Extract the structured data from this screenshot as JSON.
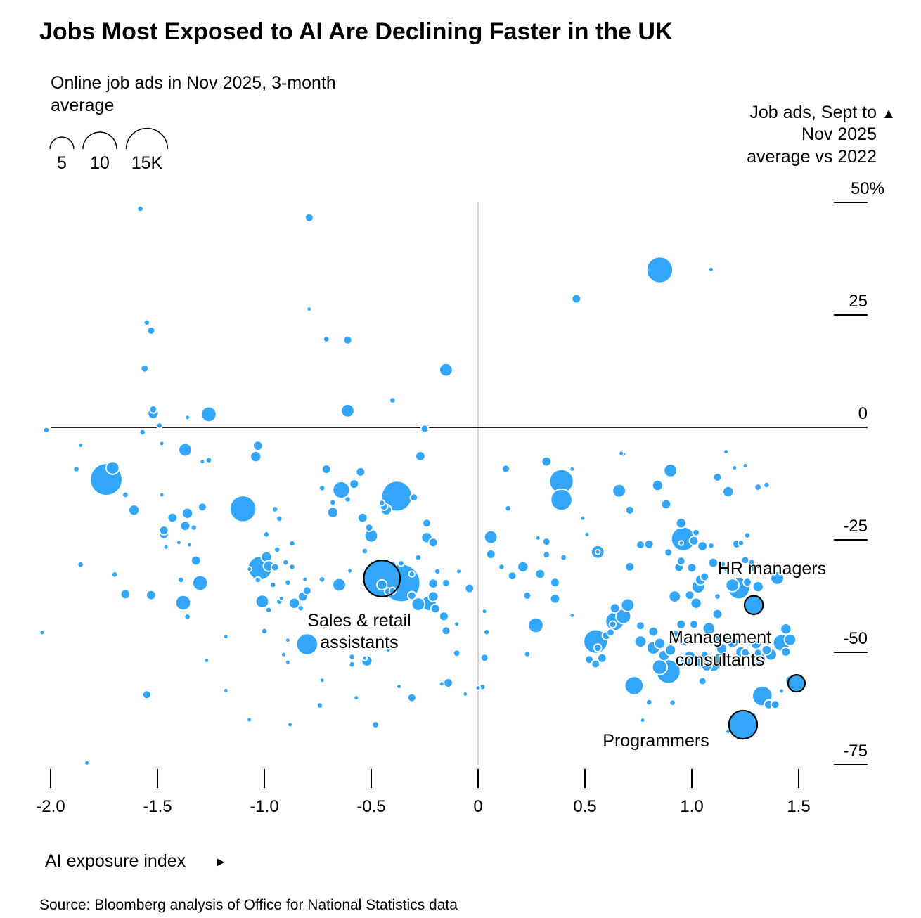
{
  "chart_data": {
    "type": "scatter",
    "title": "Jobs Most Exposed to AI Are Declining Faster in the UK",
    "size_legend": {
      "title": "Online job ads in Nov 2025, 3-month average",
      "entries": [
        {
          "label": "5",
          "value_k": 5
        },
        {
          "label": "10",
          "value_k": 10
        },
        {
          "label": "15K",
          "value_k": 15
        }
      ]
    },
    "ylabel": "Job ads, Sept to Nov 2025 average vs 2022",
    "ylabel_lines": [
      "Job ads, Sept to",
      "Nov 2025",
      "average vs 2022"
    ],
    "ylabel_arrow": "▲",
    "xlabel": "AI exposure index",
    "xlabel_arrow": "►",
    "xlim": [
      -2.0,
      1.5
    ],
    "ylim": [
      -75,
      50
    ],
    "xticks": [
      {
        "value": -2.0,
        "label": "-2.0"
      },
      {
        "value": -1.5,
        "label": "-1.5"
      },
      {
        "value": -1.0,
        "label": "-1.0"
      },
      {
        "value": -0.5,
        "label": "-0.5"
      },
      {
        "value": 0,
        "label": "0"
      },
      {
        "value": 0.5,
        "label": "0.5"
      },
      {
        "value": 1.0,
        "label": "1.0"
      },
      {
        "value": 1.5,
        "label": "1.5"
      }
    ],
    "yticks": [
      {
        "value": 50,
        "label": "50%"
      },
      {
        "value": 25,
        "label": "25"
      },
      {
        "value": 0,
        "label": "0"
      },
      {
        "value": -25,
        "label": "-25"
      },
      {
        "value": -50,
        "label": "-50"
      },
      {
        "value": -75,
        "label": "-75"
      }
    ],
    "bubble_color": "#33a6f9",
    "highlighted": [
      {
        "name": "Sales & retail assistants",
        "label_lines": [
          "Sales & retail",
          "assistants"
        ],
        "x": -0.45,
        "y": -33.6,
        "size_k": 11.5
      },
      {
        "name": "HR managers",
        "label_lines": [
          "HR managers"
        ],
        "x": 1.29,
        "y": -39.5,
        "size_k": 3.0
      },
      {
        "name": "Management consultants",
        "label_lines": [
          "Management",
          "consultants"
        ],
        "x": 1.49,
        "y": -56.9,
        "size_k": 2.5
      },
      {
        "name": "Programmers",
        "label_lines": [
          "Programmers"
        ],
        "x": 1.24,
        "y": -66.1,
        "size_k": 7.0
      }
    ],
    "points": [
      [
        -1.58,
        48.6,
        0.3
      ],
      [
        -1.55,
        23.3,
        0.3
      ],
      [
        -1.57,
        -1.1,
        0.3
      ],
      [
        -2.04,
        -45.6,
        0.2
      ],
      [
        -0.79,
        46.6,
        0.6
      ],
      [
        -0.79,
        26.3,
        0.2
      ],
      [
        -0.71,
        19.6,
        0.3
      ],
      [
        -0.61,
        19.4,
        0.6
      ],
      [
        0.46,
        28.6,
        0.7
      ],
      [
        0.85,
        35.0,
        6.0
      ],
      [
        1.09,
        35.1,
        0.2
      ],
      [
        -0.15,
        12.8,
        1.5
      ],
      [
        -1.53,
        21.5,
        0.5
      ],
      [
        -1.56,
        13.1,
        0.5
      ],
      [
        -1.52,
        4.0,
        0.5
      ],
      [
        -1.52,
        3.1,
        1.0
      ],
      [
        -1.49,
        0.4,
        0.3
      ],
      [
        -1.36,
        2.2,
        0.2
      ],
      [
        -1.26,
        2.9,
        2.0
      ],
      [
        -0.61,
        3.7,
        1.5
      ],
      [
        -0.4,
        6.0,
        0.3
      ],
      [
        -0.25,
        -0.3,
        0.5
      ],
      [
        -2.02,
        -0.6,
        0.3
      ],
      [
        -1.86,
        -4.0,
        0.2
      ],
      [
        -1.88,
        -9.3,
        0.3
      ],
      [
        -1.74,
        -11.6,
        9.0
      ],
      [
        -1.71,
        -9.0,
        1.5
      ],
      [
        -1.65,
        -15.0,
        0.3
      ],
      [
        -1.61,
        -18.4,
        1.0
      ],
      [
        -1.48,
        -3.6,
        0.2
      ],
      [
        -1.37,
        -5.0,
        1.5
      ],
      [
        -1.29,
        -7.6,
        0.2
      ],
      [
        -1.26,
        -7.3,
        0.3
      ],
      [
        -1.1,
        -18.1,
        6.0
      ],
      [
        -1.03,
        -4.1,
        0.8
      ],
      [
        -1.48,
        -15.0,
        0.2
      ],
      [
        -1.43,
        -20.1,
        0.8
      ],
      [
        -1.47,
        -23.7,
        0.8
      ],
      [
        -1.47,
        -22.9,
        0.7
      ],
      [
        -1.36,
        -19.1,
        1.0
      ],
      [
        -1.37,
        -21.9,
        0.8
      ],
      [
        -1.33,
        -22.3,
        0.3
      ],
      [
        -1.29,
        -17.7,
        0.6
      ],
      [
        -1.46,
        -26.6,
        0.2
      ],
      [
        -1.4,
        -25.6,
        0.2
      ],
      [
        -1.35,
        -26.1,
        0.2
      ],
      [
        -1.86,
        -30.5,
        0.3
      ],
      [
        -1.7,
        -32.7,
        0.3
      ],
      [
        -1.65,
        -37.1,
        0.8
      ],
      [
        -1.53,
        -37.3,
        0.8
      ],
      [
        -1.39,
        -33.9,
        0.3
      ],
      [
        -1.32,
        -29.6,
        0.8
      ],
      [
        -1.3,
        -34.6,
        2.0
      ],
      [
        -1.38,
        -39.0,
        2.0
      ],
      [
        -1.36,
        -42.1,
        0.3
      ],
      [
        -1.55,
        -59.4,
        0.6
      ],
      [
        -1.83,
        -74.6,
        0.2
      ],
      [
        -1.27,
        -51.8,
        0.2
      ],
      [
        -1.18,
        -46.5,
        0.2
      ],
      [
        -1.18,
        -58.5,
        0.2
      ],
      [
        -1.07,
        -31.5,
        0.2
      ],
      [
        -0.94,
        -27.2,
        0.3
      ],
      [
        -1.02,
        -31.3,
        5.0
      ],
      [
        -0.99,
        -28.8,
        1.0
      ],
      [
        -0.98,
        -30.8,
        1.0
      ],
      [
        -0.95,
        -31.1,
        0.5
      ],
      [
        -0.9,
        -30.0,
        0.3
      ],
      [
        -0.87,
        -31.0,
        0.3
      ],
      [
        -0.96,
        -35.0,
        0.3
      ],
      [
        -0.89,
        -34.5,
        0.3
      ],
      [
        -1.01,
        -38.7,
        1.5
      ],
      [
        -0.98,
        -40.6,
        0.3
      ],
      [
        -0.93,
        -38.7,
        0.3
      ],
      [
        -0.86,
        -39.1,
        1.0
      ],
      [
        -1.0,
        -45.3,
        0.3
      ],
      [
        -0.82,
        -37.6,
        0.8
      ],
      [
        -0.81,
        -33.8,
        0.2
      ],
      [
        -0.8,
        -36.3,
        0.6
      ],
      [
        -0.92,
        -38.0,
        0.2
      ],
      [
        -0.87,
        -25.8,
        0.3
      ],
      [
        -0.95,
        -18.2,
        0.3
      ],
      [
        -0.93,
        -20.3,
        0.3
      ],
      [
        -0.99,
        -23.8,
        0.3
      ],
      [
        -1.03,
        -33.9,
        0.3
      ],
      [
        -0.89,
        -52.2,
        0.2
      ],
      [
        -0.91,
        -50.5,
        0.2
      ],
      [
        -0.8,
        -48.2,
        4.0
      ],
      [
        -0.83,
        -40.2,
        0.3
      ],
      [
        -0.89,
        -47.3,
        0.2
      ],
      [
        -1.04,
        -6.5,
        1.0
      ],
      [
        -0.71,
        -9.3,
        0.7
      ],
      [
        -0.73,
        -13.5,
        0.3
      ],
      [
        -0.64,
        -13.9,
        2.5
      ],
      [
        -0.61,
        -16.0,
        0.3
      ],
      [
        -0.58,
        -12.6,
        0.7
      ],
      [
        -0.68,
        -16.7,
        0.3
      ],
      [
        -0.68,
        -18.9,
        1.0
      ],
      [
        -0.54,
        -20.1,
        0.8
      ],
      [
        -0.55,
        -9.9,
        0.7
      ],
      [
        -0.5,
        -24.1,
        1.5
      ],
      [
        -0.51,
        -22.3,
        0.5
      ],
      [
        -0.38,
        -15.3,
        8.0
      ],
      [
        -0.45,
        -16.8,
        0.3
      ],
      [
        -0.44,
        -17.6,
        0.5
      ],
      [
        -0.43,
        -18.3,
        1.0
      ],
      [
        -0.3,
        -15.6,
        0.5
      ],
      [
        -0.27,
        -6.4,
        0.8
      ],
      [
        -0.24,
        -21.3,
        0.6
      ],
      [
        -0.21,
        -25.6,
        0.7
      ],
      [
        -0.24,
        -24.5,
        1.0
      ],
      [
        -0.28,
        -28.9,
        0.3
      ],
      [
        -0.49,
        -33.1,
        0.4
      ],
      [
        -0.53,
        -27.5,
        0.3
      ],
      [
        -0.73,
        -33.8,
        0.3
      ],
      [
        -0.65,
        -35.0,
        1.5
      ],
      [
        -0.6,
        -31.9,
        0.2
      ],
      [
        -0.36,
        -34.6,
        12.5
      ],
      [
        -0.4,
        -30.5,
        0.4
      ],
      [
        -0.36,
        -30.2,
        0.3
      ],
      [
        -0.31,
        -32.6,
        0.3
      ],
      [
        -0.19,
        -32.0,
        0.3
      ],
      [
        -0.21,
        -34.7,
        0.8
      ],
      [
        -0.21,
        -37.6,
        0.9
      ],
      [
        -0.31,
        -37.4,
        0.6
      ],
      [
        -0.28,
        -39.3,
        1.5
      ],
      [
        -0.23,
        -39.1,
        2.0
      ],
      [
        -0.2,
        -40.3,
        0.7
      ],
      [
        -0.16,
        -42.0,
        0.7
      ],
      [
        -0.15,
        -45.2,
        0.6
      ],
      [
        -0.15,
        -34.6,
        0.5
      ],
      [
        -0.09,
        -32.0,
        0.2
      ],
      [
        -0.1,
        -43.7,
        0.2
      ],
      [
        -0.1,
        -50.2,
        0.4
      ],
      [
        -0.14,
        -56.8,
        0.7
      ],
      [
        -0.31,
        -60.1,
        0.6
      ],
      [
        -0.48,
        -66.1,
        0.4
      ],
      [
        -0.37,
        -57.6,
        0.2
      ],
      [
        -0.53,
        -51.3,
        0.2
      ],
      [
        -0.52,
        -51.9,
        1.0
      ],
      [
        -0.42,
        -49.5,
        0.2
      ],
      [
        -0.59,
        -51.0,
        0.3
      ],
      [
        -0.59,
        -52.7,
        0.3
      ],
      [
        -0.57,
        -60.1,
        0.2
      ],
      [
        -0.73,
        -56.2,
        0.2
      ],
      [
        -0.74,
        -61.8,
        0.3
      ],
      [
        -0.06,
        -59.3,
        0.2
      ],
      [
        -0.17,
        -57.0,
        0.2
      ],
      [
        -0.04,
        -35.8,
        0.7
      ],
      [
        -1.07,
        -65.0,
        0.2
      ],
      [
        -0.88,
        -66.1,
        0.2
      ],
      [
        0.06,
        -24.4,
        1.5
      ],
      [
        0.06,
        -28.2,
        0.7
      ],
      [
        0.13,
        -9.2,
        0.5
      ],
      [
        0.14,
        -18.0,
        0.3
      ],
      [
        0.03,
        -40.9,
        0.2
      ],
      [
        0.04,
        -45.5,
        0.3
      ],
      [
        0.03,
        -51.2,
        0.5
      ],
      [
        0.02,
        -57.7,
        0.3
      ],
      [
        0.0,
        -57.9,
        0.2
      ],
      [
        0.11,
        -31.0,
        0.3
      ],
      [
        0.16,
        -33.0,
        0.6
      ],
      [
        0.21,
        -31.0,
        1.0
      ],
      [
        0.28,
        -24.6,
        0.2
      ],
      [
        0.29,
        -32.6,
        0.8
      ],
      [
        0.32,
        -28.3,
        0.4
      ],
      [
        0.36,
        -38.1,
        0.8
      ],
      [
        0.36,
        -34.5,
        0.7
      ],
      [
        0.23,
        -37.4,
        0.5
      ],
      [
        0.27,
        -44.0,
        2.0
      ],
      [
        0.23,
        -50.4,
        0.3
      ],
      [
        0.32,
        -25.4,
        0.5
      ],
      [
        0.39,
        -12.0,
        5.0
      ],
      [
        0.39,
        -16.1,
        4.0
      ],
      [
        0.32,
        -7.6,
        0.8
      ],
      [
        0.44,
        -9.3,
        0.2
      ],
      [
        0.4,
        -28.9,
        0.3
      ],
      [
        0.49,
        -20.2,
        0.2
      ],
      [
        0.51,
        -23.8,
        0.2
      ],
      [
        0.56,
        -27.7,
        1.5
      ],
      [
        0.56,
        -27.7,
        0.2
      ],
      [
        0.44,
        -41.8,
        0.2
      ],
      [
        0.55,
        -47.6,
        5.0
      ],
      [
        0.56,
        -49.0,
        0.5
      ],
      [
        0.58,
        -51.3,
        0.7
      ],
      [
        0.52,
        -51.6,
        0.6
      ],
      [
        0.55,
        -52.6,
        0.6
      ],
      [
        0.6,
        -46.3,
        0.6
      ],
      [
        0.64,
        -43.1,
        3.0
      ],
      [
        0.68,
        -42.0,
        2.0
      ],
      [
        0.7,
        -39.5,
        1.5
      ],
      [
        0.64,
        -40.2,
        0.8
      ],
      [
        0.63,
        -43.8,
        0.4
      ],
      [
        0.62,
        -45.6,
        0.5
      ],
      [
        0.71,
        -31.0,
        0.7
      ],
      [
        0.71,
        -18.4,
        0.6
      ],
      [
        0.66,
        -14.1,
        1.5
      ],
      [
        0.68,
        -6.0,
        0.2
      ],
      [
        0.84,
        -12.9,
        1.0
      ],
      [
        0.9,
        -9.6,
        1.5
      ],
      [
        0.88,
        -17.1,
        0.8
      ],
      [
        0.76,
        -26.1,
        0.6
      ],
      [
        0.8,
        -26.0,
        0.7
      ],
      [
        0.73,
        -57.4,
        3.0
      ],
      [
        0.8,
        -61.1,
        0.3
      ],
      [
        0.91,
        -61.2,
        0.3
      ],
      [
        0.77,
        -65.1,
        0.2
      ],
      [
        0.82,
        -49.0,
        1.5
      ],
      [
        0.85,
        -53.3,
        2.0
      ],
      [
        0.89,
        -54.3,
        5.0
      ],
      [
        0.87,
        -50.7,
        1.0
      ],
      [
        0.76,
        -44.1,
        0.6
      ],
      [
        0.76,
        -47.6,
        1.2
      ],
      [
        0.82,
        -45.4,
        0.8
      ],
      [
        0.85,
        -48.0,
        1.0
      ],
      [
        0.9,
        -49.5,
        1.0
      ],
      [
        0.92,
        -46.2,
        1.0
      ],
      [
        0.95,
        -43.8,
        0.7
      ],
      [
        1.01,
        -43.8,
        0.6
      ],
      [
        0.92,
        -37.6,
        1.2
      ],
      [
        1.01,
        -47.8,
        0.3
      ],
      [
        0.96,
        -47.4,
        0.9
      ],
      [
        0.97,
        -51.9,
        1.0
      ],
      [
        0.99,
        -51.2,
        1.5
      ],
      [
        1.04,
        -52.0,
        1.3
      ],
      [
        1.07,
        -53.0,
        1.0
      ],
      [
        1.06,
        -50.6,
        0.5
      ],
      [
        1.05,
        -56.4,
        0.5
      ],
      [
        1.1,
        -52.6,
        2.0
      ],
      [
        1.13,
        -51.6,
        1.5
      ],
      [
        1.14,
        -49.2,
        1.0
      ],
      [
        1.12,
        -47.2,
        0.8
      ],
      [
        1.17,
        -46.9,
        0.4
      ],
      [
        1.19,
        -47.7,
        1.2
      ],
      [
        1.25,
        -50.1,
        0.6
      ],
      [
        1.23,
        -49.9,
        1.0
      ],
      [
        1.3,
        -48.1,
        1.0
      ],
      [
        1.31,
        -50.1,
        0.5
      ],
      [
        1.35,
        -49.5,
        0.8
      ],
      [
        1.32,
        -51.4,
        1.0
      ],
      [
        1.37,
        -50.5,
        1.2
      ],
      [
        1.42,
        -47.9,
        2.5
      ],
      [
        1.44,
        -44.8,
        1.0
      ],
      [
        1.44,
        -49.9,
        0.7
      ],
      [
        1.46,
        -47.2,
        1.2
      ],
      [
        1.46,
        -56.2,
        0.7
      ],
      [
        1.42,
        -58.6,
        0.2
      ],
      [
        1.33,
        -59.7,
        3.5
      ],
      [
        1.36,
        -61.6,
        0.7
      ],
      [
        1.39,
        -61.6,
        0.6
      ],
      [
        1.29,
        -64.0,
        0.2
      ],
      [
        1.03,
        -69.3,
        0.2
      ],
      [
        1.17,
        -67.6,
        0.2
      ],
      [
        0.96,
        -24.8,
        5.0
      ],
      [
        0.95,
        -21.3,
        0.9
      ],
      [
        1.02,
        -23.4,
        0.4
      ],
      [
        1.01,
        -25.2,
        0.7
      ],
      [
        1.05,
        -26.4,
        0.8
      ],
      [
        0.95,
        -25.7,
        0.2
      ],
      [
        0.89,
        -27.8,
        0.5
      ],
      [
        0.95,
        -29.7,
        0.6
      ],
      [
        0.94,
        -31.1,
        0.7
      ],
      [
        1.0,
        -31.2,
        0.7
      ],
      [
        1.03,
        -35.4,
        1.5
      ],
      [
        1.04,
        -33.9,
        0.9
      ],
      [
        1.06,
        -33.2,
        0.6
      ],
      [
        0.99,
        -37.3,
        0.7
      ],
      [
        1.02,
        -39.1,
        1.0
      ],
      [
        1.12,
        -37.6,
        0.3
      ],
      [
        1.1,
        -30.1,
        0.8
      ],
      [
        1.14,
        -30.5,
        0.5
      ],
      [
        1.21,
        -25.9,
        0.6
      ],
      [
        1.26,
        -24.0,
        0.3
      ],
      [
        1.25,
        -29.5,
        0.5
      ],
      [
        1.28,
        -29.9,
        0.3
      ],
      [
        1.28,
        -31.4,
        0.4
      ],
      [
        1.31,
        -30.9,
        0.2
      ],
      [
        1.22,
        -35.8,
        4.0
      ],
      [
        1.19,
        -35.1,
        1.5
      ],
      [
        1.31,
        -35.4,
        1.0
      ],
      [
        1.4,
        -33.5,
        1.5
      ],
      [
        1.12,
        -41.5,
        0.8
      ],
      [
        1.08,
        -44.7,
        1.3
      ],
      [
        1.17,
        -32.3,
        0.3
      ],
      [
        1.16,
        -31.4,
        0.3
      ],
      [
        1.26,
        -34.4,
        0.6
      ],
      [
        1.12,
        -11.1,
        0.6
      ],
      [
        1.17,
        -14.3,
        1.0
      ],
      [
        1.2,
        -9.0,
        0.2
      ],
      [
        1.31,
        -13.3,
        0.4
      ],
      [
        1.35,
        -12.8,
        0.3
      ],
      [
        1.16,
        -5.4,
        0.2
      ],
      [
        1.25,
        -8.5,
        0.2
      ],
      [
        0.67,
        -5.8,
        0.2
      ],
      [
        1.09,
        -26.3,
        0.3
      ],
      [
        1.23,
        -25.7,
        0.3
      ]
    ]
  },
  "source": "Source: Bloomberg analysis of Office for National Statistics data"
}
